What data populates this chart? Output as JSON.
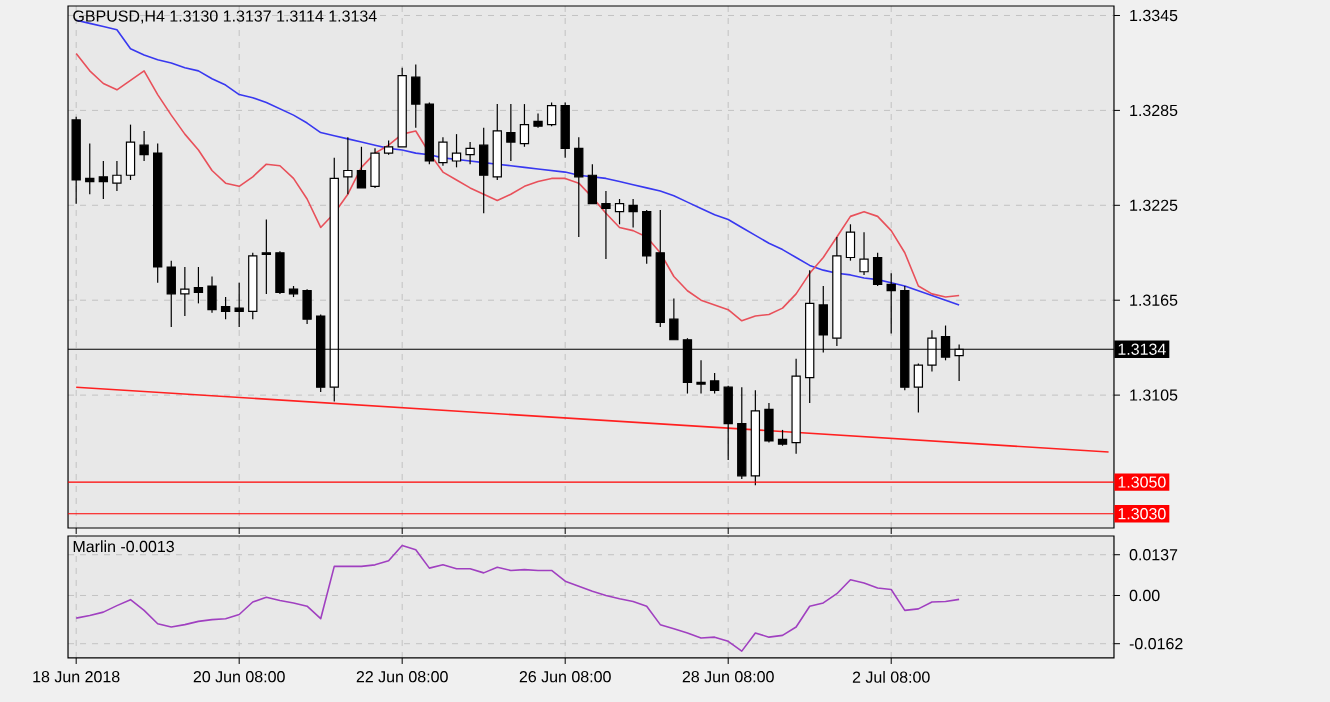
{
  "chart_data": [
    {
      "type": "candlestick",
      "title": "GBPUSD,H4  1.3130 1.3137 1.3114 1.3134",
      "categories": [
        null,
        null,
        null,
        null,
        null,
        null,
        null,
        null,
        null,
        null,
        null,
        null,
        null,
        null,
        null,
        null,
        null,
        null,
        null,
        null,
        null,
        null,
        null,
        null,
        null,
        null,
        null,
        null,
        null,
        null,
        null,
        null,
        null,
        null,
        null,
        null,
        null,
        null,
        null,
        null,
        null,
        null,
        null,
        null,
        null,
        null,
        null,
        null,
        null,
        null,
        null,
        null,
        null,
        null,
        null,
        null,
        null,
        null,
        null,
        null,
        null,
        null,
        null,
        null,
        null,
        null,
        null,
        null,
        null,
        null,
        null,
        null,
        null,
        null,
        null,
        null,
        null
      ],
      "ohlc": [
        [
          1.3279,
          1.3281,
          1.3226,
          1.3241
        ],
        [
          1.3242,
          1.3264,
          1.3232,
          1.324
        ],
        [
          1.3243,
          1.3253,
          1.3229,
          1.324
        ],
        [
          1.3239,
          1.3253,
          1.3234,
          1.3244
        ],
        [
          1.3244,
          1.3276,
          1.3241,
          1.3265
        ],
        [
          1.3263,
          1.3272,
          1.3253,
          1.3257
        ],
        [
          1.3258,
          1.3264,
          1.3176,
          1.3186
        ],
        [
          1.3186,
          1.319,
          1.3148,
          1.3169
        ],
        [
          1.3169,
          1.3186,
          1.3155,
          1.3172
        ],
        [
          1.3173,
          1.3186,
          1.3163,
          1.317
        ],
        [
          1.3174,
          1.318,
          1.3157,
          1.3159
        ],
        [
          1.3161,
          1.3167,
          1.3153,
          1.3158
        ],
        [
          1.316,
          1.3176,
          1.3148,
          1.3158
        ],
        [
          1.3158,
          1.3195,
          1.3153,
          1.3193
        ],
        [
          1.3195,
          1.3216,
          1.3169,
          1.3194
        ],
        [
          1.3195,
          1.3196,
          1.3169,
          1.317
        ],
        [
          1.3172,
          1.3174,
          1.3167,
          1.3169
        ],
        [
          1.3171,
          1.3172,
          1.315,
          1.3153
        ],
        [
          1.3155,
          1.3156,
          1.3107,
          1.311
        ],
        [
          1.311,
          1.3255,
          1.3101,
          1.3242
        ],
        [
          1.3243,
          1.3268,
          1.3232,
          1.3247
        ],
        [
          1.3247,
          1.3262,
          1.3236,
          1.3236
        ],
        [
          1.3237,
          1.3261,
          1.3236,
          1.3258
        ],
        [
          1.3258,
          1.3266,
          1.3257,
          1.3262
        ],
        [
          1.3262,
          1.3312,
          1.3262,
          1.3307
        ],
        [
          1.3306,
          1.3314,
          1.3274,
          1.3289
        ],
        [
          1.3289,
          1.329,
          1.3251,
          1.3253
        ],
        [
          1.3252,
          1.3268,
          1.325,
          1.3265
        ],
        [
          1.3253,
          1.327,
          1.3249,
          1.3258
        ],
        [
          1.3257,
          1.3265,
          1.3251,
          1.3261
        ],
        [
          1.3263,
          1.3274,
          1.322,
          1.3244
        ],
        [
          1.3243,
          1.3289,
          1.3241,
          1.3272
        ],
        [
          1.3271,
          1.3289,
          1.3253,
          1.3265
        ],
        [
          1.3264,
          1.3289,
          1.3262,
          1.3276
        ],
        [
          1.3278,
          1.3283,
          1.3274,
          1.3275
        ],
        [
          1.3276,
          1.329,
          1.3275,
          1.3288
        ],
        [
          1.3288,
          1.329,
          1.3255,
          1.3261
        ],
        [
          1.3261,
          1.3268,
          1.3205,
          1.3243
        ],
        [
          1.3244,
          1.3251,
          1.3226,
          1.3226
        ],
        [
          1.3226,
          1.3234,
          1.3191,
          1.3223
        ],
        [
          1.3221,
          1.3229,
          1.3213,
          1.3226
        ],
        [
          1.3225,
          1.3229,
          1.3211,
          1.3221
        ],
        [
          1.3221,
          1.3222,
          1.3188,
          1.3193
        ],
        [
          1.3195,
          1.3222,
          1.3148,
          1.3151
        ],
        [
          1.3153,
          1.3166,
          1.314,
          1.314
        ],
        [
          1.314,
          1.3141,
          1.3106,
          1.3113
        ],
        [
          1.3113,
          1.3127,
          1.3106,
          1.3112
        ],
        [
          1.3114,
          1.3119,
          1.3106,
          1.3108
        ],
        [
          1.311,
          1.3111,
          1.3064,
          1.3087
        ],
        [
          1.3087,
          1.311,
          1.3052,
          1.3054
        ],
        [
          1.3054,
          1.3108,
          1.3048,
          1.3095
        ],
        [
          1.3096,
          1.31,
          1.3075,
          1.3076
        ],
        [
          1.3077,
          1.3083,
          1.3073,
          1.3074
        ],
        [
          1.3075,
          1.3128,
          1.3068,
          1.3117
        ],
        [
          1.3116,
          1.3184,
          1.31,
          1.3163
        ],
        [
          1.3162,
          1.3174,
          1.3132,
          1.3143
        ],
        [
          1.3141,
          1.3205,
          1.3136,
          1.3193
        ],
        [
          1.3192,
          1.3213,
          1.319,
          1.3208
        ],
        [
          1.3183,
          1.3208,
          1.3181,
          1.3191
        ],
        [
          1.3192,
          1.3195,
          1.3174,
          1.3175
        ],
        [
          1.3175,
          1.3182,
          1.3144,
          1.3171
        ],
        [
          1.3171,
          1.3174,
          1.3108,
          1.311
        ],
        [
          1.311,
          1.3125,
          1.3094,
          1.3124
        ],
        [
          1.3124,
          1.3146,
          1.312,
          1.3141
        ],
        [
          1.3142,
          1.3149,
          1.3127,
          1.3129
        ],
        [
          1.313,
          1.3137,
          1.3114,
          1.3134
        ],
        null,
        null,
        null,
        null,
        null,
        null,
        null,
        null,
        null,
        null,
        null
      ],
      "series": [
        {
          "type": "line",
          "color": "#3838f0",
          "values": [
            1.3342,
            1.334,
            1.3338,
            1.3336,
            1.3324,
            1.332,
            1.3317,
            1.3315,
            1.3312,
            1.331,
            1.3305,
            1.3301,
            1.3295,
            1.3293,
            1.329,
            1.3286,
            1.3282,
            1.3277,
            1.3271,
            1.3269,
            1.3267,
            1.3265,
            1.3263,
            1.3261,
            1.326,
            1.3258,
            1.3257,
            1.3255,
            1.3254,
            1.3253,
            1.3252,
            1.3251,
            1.325,
            1.3249,
            1.3248,
            1.3247,
            1.3246,
            1.3244,
            1.3243,
            1.3242,
            1.324,
            1.3238,
            1.3236,
            1.3234,
            1.3231,
            1.3227,
            1.3223,
            1.3219,
            1.3216,
            1.3211,
            1.3206,
            1.3201,
            1.3197,
            1.3192,
            1.3187,
            1.3184,
            1.3182,
            1.3181,
            1.3179,
            1.3178,
            1.3176,
            1.3174,
            1.3171,
            1.3168,
            1.3165,
            1.3162,
            null,
            null,
            null,
            null,
            null,
            null,
            null,
            null,
            null,
            null,
            null
          ]
        },
        {
          "type": "line",
          "color": "#e8505a",
          "values": [
            1.3321,
            1.331,
            1.3302,
            1.3298,
            1.3304,
            1.331,
            1.3295,
            1.3282,
            1.327,
            1.326,
            1.3247,
            1.3239,
            1.3237,
            1.3243,
            1.3251,
            1.325,
            1.3242,
            1.3229,
            1.3211,
            1.322,
            1.3232,
            1.3249,
            1.3258,
            1.3263,
            1.327,
            1.3272,
            1.3258,
            1.3246,
            1.3241,
            1.3236,
            1.3232,
            1.3228,
            1.3232,
            1.3237,
            1.324,
            1.3242,
            1.3242,
            1.3239,
            1.323,
            1.322,
            1.3211,
            1.3209,
            1.3205,
            1.3195,
            1.318,
            1.3171,
            1.3165,
            1.3162,
            1.3159,
            1.3152,
            1.3155,
            1.3156,
            1.316,
            1.3169,
            1.3182,
            1.3192,
            1.3205,
            1.3218,
            1.3221,
            1.3218,
            1.3209,
            1.3195,
            1.3174,
            1.3169,
            1.3167,
            1.3168,
            null,
            null,
            null,
            null,
            null,
            null,
            null,
            null,
            null,
            null,
            null
          ]
        },
        {
          "type": "line",
          "color": "#ff2020",
          "values": [
            1.311,
            null,
            null,
            null,
            null,
            null,
            null,
            null,
            null,
            null,
            null,
            null,
            null,
            null,
            null,
            null,
            null,
            null,
            null,
            null,
            null,
            null,
            null,
            null,
            null,
            null,
            null,
            null,
            null,
            null,
            null,
            null,
            null,
            null,
            null,
            null,
            null,
            null,
            null,
            null,
            null,
            null,
            null,
            null,
            null,
            null,
            null,
            null,
            null,
            null,
            null,
            null,
            null,
            null,
            null,
            null,
            null,
            null,
            null,
            null,
            null,
            null,
            null,
            null,
            null,
            null,
            null,
            null,
            null,
            null,
            null,
            null,
            null,
            null,
            null,
            null,
            1.3069
          ]
        }
      ],
      "ylim": [
        1.3021,
        1.3351
      ],
      "yticks": [
        1.3345,
        1.3285,
        1.3225,
        1.3165,
        1.3105
      ],
      "ref_lines": [
        {
          "axis": "y",
          "value": 1.3134,
          "label": "1.3134",
          "color": "#000000"
        },
        {
          "axis": "y",
          "value": 1.305,
          "label": "1.3050",
          "color": "#ff0000"
        },
        {
          "axis": "y",
          "value": 1.303,
          "label": "1.3030",
          "color": "#ff0000"
        }
      ],
      "grid": true,
      "tick_labels": "y"
    },
    {
      "type": "line",
      "title": "Marlin -0.0013",
      "categories": [
        "18 Jun 2018",
        null,
        null,
        null,
        null,
        null,
        null,
        null,
        null,
        null,
        null,
        null,
        "20 Jun 08:00",
        null,
        null,
        null,
        null,
        null,
        null,
        null,
        null,
        null,
        null,
        null,
        "22 Jun 08:00",
        null,
        null,
        null,
        null,
        null,
        null,
        null,
        null,
        null,
        null,
        null,
        "26 Jun 08:00",
        null,
        null,
        null,
        null,
        null,
        null,
        null,
        null,
        null,
        null,
        null,
        "28 Jun 08:00",
        null,
        null,
        null,
        null,
        null,
        null,
        null,
        null,
        null,
        null,
        null,
        "2 Jul 08:00",
        null,
        null,
        null,
        null,
        null,
        null,
        null,
        null,
        null,
        null,
        null,
        null,
        null,
        null,
        null,
        null
      ],
      "values": [
        -0.0076,
        -0.0067,
        -0.0056,
        -0.0034,
        -0.0014,
        -0.005,
        -0.0095,
        -0.0106,
        -0.0098,
        -0.0087,
        -0.0081,
        -0.0078,
        -0.0064,
        -0.0022,
        -0.0006,
        -0.0017,
        -0.0025,
        -0.0036,
        -0.0078,
        0.0098,
        0.0098,
        0.0098,
        0.0103,
        0.0117,
        0.0168,
        0.0154,
        0.0092,
        0.0103,
        0.009,
        0.009,
        0.0076,
        0.0095,
        0.0084,
        0.0087,
        0.0084,
        0.0084,
        0.0048,
        0.0031,
        0.0014,
        0.0,
        -0.0011,
        -0.002,
        -0.0036,
        -0.0098,
        -0.0112,
        -0.0126,
        -0.0143,
        -0.014,
        -0.0154,
        -0.0187,
        -0.0126,
        -0.014,
        -0.0134,
        -0.0106,
        -0.0036,
        -0.0025,
        0.0006,
        0.0053,
        0.0042,
        0.0025,
        0.002,
        -0.005,
        -0.0045,
        -0.0022,
        -0.002,
        -0.0013,
        null,
        null,
        null,
        null,
        null,
        null,
        null,
        null,
        null,
        null,
        null
      ],
      "color": "#a040c0",
      "ylim": [
        -0.021,
        0.02
      ],
      "yticks": [
        0.0137,
        {
          "value": 0,
          "label": "0.00"
        },
        -0.0162
      ],
      "grid": true
    }
  ]
}
